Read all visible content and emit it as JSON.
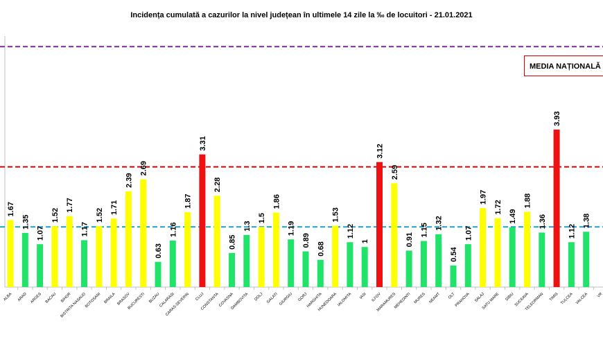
{
  "chart_data": {
    "type": "bar",
    "title": "Incidența cumulată a cazurilor la nivel județean în ultimele 14 zile la ‰ de locuitori - 21.01.2021",
    "legend_label": "MEDIA NAȚIONALĂ",
    "categories": [
      "ALBA",
      "ARAD",
      "ARGES",
      "BACAU",
      "BIHOR",
      "BISTRITA NASAUD",
      "BOTOSANI",
      "BRAILA",
      "BRASOV",
      "BUCURESTI",
      "BUZAU",
      "CALARASI",
      "CARAS-SEVERIN",
      "CLUJ",
      "CONSTANTA",
      "COVASNA",
      "DAMBOVITA",
      "DOLJ",
      "GALATI",
      "GIURGIU",
      "GORJ",
      "HARGHITA",
      "HUNEDOARA",
      "IALOMITA",
      "IASI",
      "ILFOV",
      "MARAMURES",
      "MEHEDINTI",
      "MURES",
      "NEAMT",
      "OLT",
      "PRAHOVA",
      "SALAJ",
      "SATU MARE",
      "SIBIU",
      "SUCEAVA",
      "TELEORMAN",
      "TIMIS",
      "TULCEA",
      "VALCEA",
      "VR"
    ],
    "values": [
      1.67,
      1.35,
      1.07,
      1.52,
      1.77,
      1.17,
      1.52,
      1.71,
      2.39,
      2.69,
      0.63,
      1.16,
      1.87,
      3.31,
      2.28,
      0.85,
      1.3,
      1.5,
      1.86,
      1.19,
      0.89,
      0.68,
      1.53,
      1.12,
      1,
      3.12,
      2.59,
      0.91,
      1.15,
      1.32,
      0.54,
      1.07,
      1.97,
      1.72,
      1.49,
      1.88,
      1.36,
      3.93,
      1.12,
      1.38,
      null
    ],
    "value_labels": [
      "1.67",
      "1.35",
      "1.07",
      "1.52",
      "1.77",
      "1.17",
      "1.52",
      "1.71",
      "2.39",
      "2.69",
      "0.63",
      "1.16",
      "1.87",
      "3.31",
      "2.28",
      "0.85",
      "1.3",
      "1.5",
      "1.86",
      "1.19",
      "0.89",
      "0.68",
      "1.53",
      "1.12",
      "1",
      "3.12",
      "2.59",
      "0.91",
      "1.15",
      "1.32",
      "0.54",
      "1.07",
      "1.97",
      "1.72",
      "1.49",
      "1.88",
      "1.36",
      "3.93",
      "1.12",
      "1.38",
      ""
    ],
    "reference_lines": [
      {
        "value": 1.5,
        "color": "#1a9fd0",
        "style": "dashed"
      },
      {
        "value": 3.0,
        "color": "#d40000",
        "style": "dashed"
      },
      {
        "value": 6.0,
        "color": "#7b2a9a",
        "style": "dashed"
      }
    ],
    "color_rules": {
      "low": "#22e36a",
      "mid": "#ffff00",
      "high": "#ee1111"
    },
    "ylim": [
      0,
      6.3
    ],
    "grid": false
  }
}
